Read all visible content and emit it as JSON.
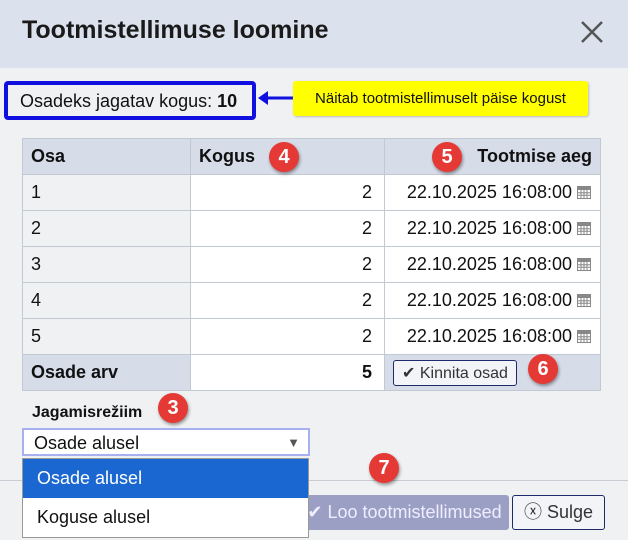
{
  "dialog": {
    "title": "Tootmistellimuse loomine"
  },
  "info": {
    "label": "Osadeks jagatav kogus:",
    "value": "10"
  },
  "note": "Näitab tootmistellimuselt päise kogust",
  "table": {
    "headers": [
      "Osa",
      "Kogus",
      "Tootmise aeg"
    ],
    "rows": [
      {
        "osa": "1",
        "kogus": "2",
        "aeg": "22.10.2025 16:08:00"
      },
      {
        "osa": "2",
        "kogus": "2",
        "aeg": "22.10.2025 16:08:00"
      },
      {
        "osa": "3",
        "kogus": "2",
        "aeg": "22.10.2025 16:08:00"
      },
      {
        "osa": "4",
        "kogus": "2",
        "aeg": "22.10.2025 16:08:00"
      },
      {
        "osa": "5",
        "kogus": "2",
        "aeg": "22.10.2025 16:08:00"
      }
    ],
    "footer": {
      "label": "Osade arv",
      "value": "5",
      "button": "Kinnita osad"
    }
  },
  "mode": {
    "label": "Jagamisrežiim",
    "selected": "Osade alusel",
    "options": [
      "Osade alusel",
      "Koguse alusel"
    ]
  },
  "buttons": {
    "create": "Loo tootmistellimused",
    "close": "Sulge"
  },
  "badges": [
    "3",
    "4",
    "5",
    "6",
    "7"
  ],
  "colors": {
    "badge": "#e53935",
    "highlight": "#1010e0",
    "note": "#ffff00",
    "selected_option": "#1a67d2"
  }
}
